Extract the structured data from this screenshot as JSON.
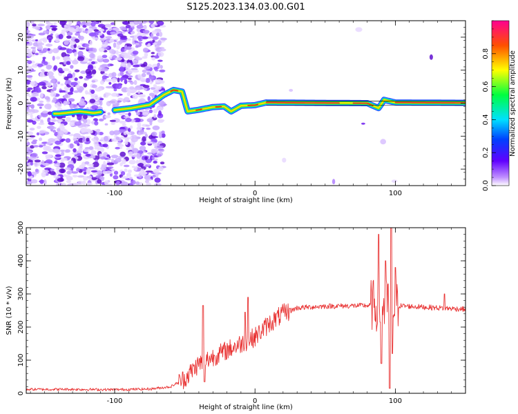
{
  "title": "S125.2023.134.03.00.G01",
  "chart_data": [
    {
      "type": "heatmap",
      "xlabel": "Height of straight line (km)",
      "ylabel": "Frequency (Hz)",
      "xlim": [
        -163,
        150
      ],
      "ylim": [
        -25,
        25
      ],
      "x_ticks": [
        -100,
        0,
        100
      ],
      "y_ticks": [
        -20,
        -10,
        0,
        10,
        20
      ],
      "colorbar": {
        "label": "Normalized spectral amplitude",
        "range": [
          0,
          1
        ],
        "ticks": [
          0.0,
          0.2,
          0.4,
          0.6,
          0.8
        ]
      },
      "ridge": [
        {
          "x": -140,
          "y": -3.2
        },
        {
          "x": -125,
          "y": -2.5
        },
        {
          "x": -115,
          "y": -3.0
        },
        {
          "x": -98,
          "y": -2.0
        },
        {
          "x": -88,
          "y": -1.5
        },
        {
          "x": -75,
          "y": -0.5
        },
        {
          "x": -65,
          "y": 2.5
        },
        {
          "x": -58,
          "y": 4.0
        },
        {
          "x": -52,
          "y": 3.5
        },
        {
          "x": -48,
          "y": -2.5
        },
        {
          "x": -40,
          "y": -2.0
        },
        {
          "x": -30,
          "y": -1.2
        },
        {
          "x": -22,
          "y": -1.0
        },
        {
          "x": -17,
          "y": -2.5
        },
        {
          "x": -10,
          "y": -0.8
        },
        {
          "x": 0,
          "y": -0.6
        },
        {
          "x": 8,
          "y": 0.2
        },
        {
          "x": 40,
          "y": 0.1
        },
        {
          "x": 80,
          "y": 0.0
        },
        {
          "x": 88,
          "y": -1.5
        },
        {
          "x": 92,
          "y": 1.0
        },
        {
          "x": 100,
          "y": 0.2
        },
        {
          "x": 150,
          "y": 0.1
        }
      ]
    },
    {
      "type": "line",
      "xlabel": "Height of straight line (km)",
      "ylabel": "SNR (10 * v/v)",
      "xlim": [
        -163,
        150
      ],
      "ylim": [
        0,
        500
      ],
      "x_ticks": [
        -100,
        0,
        100
      ],
      "y_ticks": [
        0,
        100,
        200,
        300,
        400,
        500
      ],
      "envelope": [
        {
          "x": -163,
          "y": 12
        },
        {
          "x": -130,
          "y": 12
        },
        {
          "x": -100,
          "y": 11
        },
        {
          "x": -75,
          "y": 13
        },
        {
          "x": -60,
          "y": 20
        },
        {
          "x": -50,
          "y": 45
        },
        {
          "x": -40,
          "y": 90
        },
        {
          "x": -30,
          "y": 110
        },
        {
          "x": -20,
          "y": 130
        },
        {
          "x": -10,
          "y": 150
        },
        {
          "x": 0,
          "y": 170
        },
        {
          "x": 10,
          "y": 210
        },
        {
          "x": 20,
          "y": 240
        },
        {
          "x": 30,
          "y": 258
        },
        {
          "x": 50,
          "y": 263
        },
        {
          "x": 80,
          "y": 265
        },
        {
          "x": 100,
          "y": 265
        },
        {
          "x": 130,
          "y": 258
        },
        {
          "x": 150,
          "y": 254
        }
      ],
      "spikes": [
        {
          "x": -37,
          "y": 265
        },
        {
          "x": -36,
          "y": 35
        },
        {
          "x": -7,
          "y": 245
        },
        {
          "x": -5,
          "y": 290
        },
        {
          "x": 88,
          "y": 480
        },
        {
          "x": 90,
          "y": 90
        },
        {
          "x": 93,
          "y": 400
        },
        {
          "x": 96,
          "y": 15
        },
        {
          "x": 97,
          "y": 500
        },
        {
          "x": 98,
          "y": 120
        },
        {
          "x": 100,
          "y": 380
        },
        {
          "x": 135,
          "y": 300
        }
      ]
    }
  ]
}
